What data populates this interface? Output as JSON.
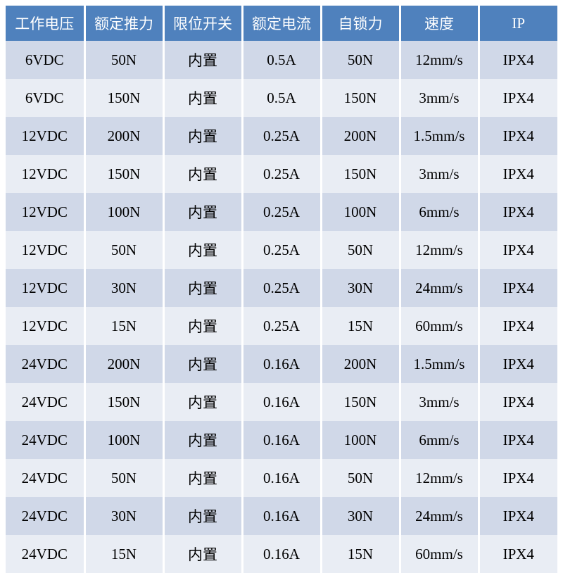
{
  "table": {
    "type": "table",
    "header_bg_color": "#4f81bd",
    "header_text_color": "#ffffff",
    "row_odd_bg_color": "#d0d8e8",
    "row_even_bg_color": "#e9edf4",
    "cell_text_color": "#000000",
    "border_color": "#ffffff",
    "font_size": 21,
    "columns": [
      "工作电压",
      "额定推力",
      "限位开关",
      "额定电流",
      "自锁力",
      "速度",
      "IP"
    ],
    "rows": [
      [
        "6VDC",
        "50N",
        "内置",
        "0.5A",
        "50N",
        "12mm/s",
        "IPX4"
      ],
      [
        "6VDC",
        "150N",
        "内置",
        "0.5A",
        "150N",
        "3mm/s",
        "IPX4"
      ],
      [
        "12VDC",
        "200N",
        "内置",
        "0.25A",
        "200N",
        "1.5mm/s",
        "IPX4"
      ],
      [
        "12VDC",
        "150N",
        "内置",
        "0.25A",
        "150N",
        "3mm/s",
        "IPX4"
      ],
      [
        "12VDC",
        "100N",
        "内置",
        "0.25A",
        "100N",
        "6mm/s",
        "IPX4"
      ],
      [
        "12VDC",
        "50N",
        "内置",
        "0.25A",
        "50N",
        "12mm/s",
        "IPX4"
      ],
      [
        "12VDC",
        "30N",
        "内置",
        "0.25A",
        "30N",
        "24mm/s",
        "IPX4"
      ],
      [
        "12VDC",
        "15N",
        "内置",
        "0.25A",
        "15N",
        "60mm/s",
        "IPX4"
      ],
      [
        "24VDC",
        "200N",
        "内置",
        "0.16A",
        "200N",
        "1.5mm/s",
        "IPX4"
      ],
      [
        "24VDC",
        "150N",
        "内置",
        "0.16A",
        "150N",
        "3mm/s",
        "IPX4"
      ],
      [
        "24VDC",
        "100N",
        "内置",
        "0.16A",
        "100N",
        "6mm/s",
        "IPX4"
      ],
      [
        "24VDC",
        "50N",
        "内置",
        "0.16A",
        "50N",
        "12mm/s",
        "IPX4"
      ],
      [
        "24VDC",
        "30N",
        "内置",
        "0.16A",
        "30N",
        "24mm/s",
        "IPX4"
      ],
      [
        "24VDC",
        "15N",
        "内置",
        "0.16A",
        "15N",
        "60mm/s",
        "IPX4"
      ]
    ]
  }
}
